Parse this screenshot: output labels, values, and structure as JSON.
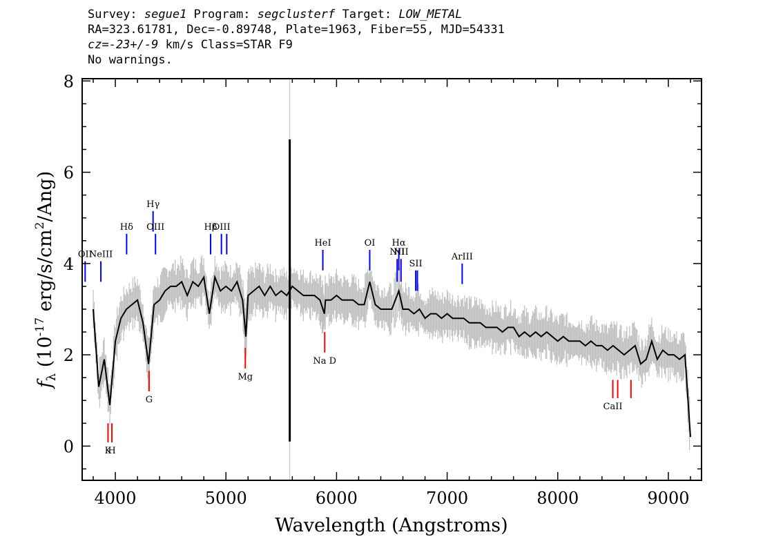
{
  "header": {
    "survey_label": "Survey: ",
    "survey": "segue1",
    "program_label": " Program: ",
    "program": "segclusterf",
    "target_label": " Target: ",
    "target": "LOW_METAL",
    "line2": "RA=323.61781, Dec=-0.89748, Plate=1963, Fiber=55, MJD=54331",
    "cz": "cz=-23+/-9",
    "line3_rest": " km/s Class=STAR F9",
    "line4": "No warnings."
  },
  "chart_data": {
    "type": "line",
    "xlabel": "Wavelength (Angstroms)",
    "ylabel": "f_λ (10^-17 erg/s/cm^2/Ang)",
    "xlim": [
      3700,
      9300
    ],
    "ylim": [
      -0.75,
      8.05
    ],
    "xticks": [
      4000,
      5000,
      6000,
      7000,
      8000,
      9000
    ],
    "yticks": [
      0,
      2,
      4,
      6,
      8
    ],
    "series": [
      {
        "name": "flux",
        "color": "#000000",
        "x": [
          3800,
          3850,
          3900,
          3950,
          4000,
          4050,
          4100,
          4150,
          4200,
          4250,
          4300,
          4350,
          4400,
          4450,
          4500,
          4550,
          4600,
          4650,
          4700,
          4750,
          4800,
          4850,
          4900,
          4950,
          5000,
          5050,
          5100,
          5150,
          5180,
          5200,
          5250,
          5300,
          5350,
          5400,
          5450,
          5500,
          5550,
          5600,
          5650,
          5700,
          5750,
          5800,
          5850,
          5890,
          5900,
          5950,
          6000,
          6050,
          6100,
          6150,
          6200,
          6250,
          6300,
          6350,
          6400,
          6450,
          6500,
          6563,
          6600,
          6650,
          6700,
          6750,
          6800,
          6850,
          6900,
          6950,
          7000,
          7050,
          7100,
          7150,
          7200,
          7250,
          7300,
          7350,
          7400,
          7450,
          7500,
          7550,
          7600,
          7650,
          7700,
          7750,
          7800,
          7850,
          7900,
          7950,
          8000,
          8050,
          8100,
          8150,
          8200,
          8250,
          8300,
          8350,
          8400,
          8450,
          8500,
          8550,
          8600,
          8650,
          8700,
          8750,
          8800,
          8850,
          8900,
          8950,
          9000,
          9050,
          9100,
          9150,
          9200
        ],
        "y": [
          3.0,
          1.3,
          1.9,
          0.9,
          2.3,
          2.8,
          3.0,
          3.1,
          3.2,
          2.7,
          1.8,
          3.1,
          3.2,
          3.4,
          3.5,
          3.5,
          3.6,
          3.3,
          3.6,
          3.5,
          3.7,
          2.9,
          3.7,
          3.4,
          3.5,
          3.4,
          3.6,
          3.2,
          2.4,
          3.3,
          3.4,
          3.5,
          3.3,
          3.5,
          3.3,
          3.4,
          3.3,
          3.5,
          3.4,
          3.3,
          3.3,
          3.3,
          3.2,
          2.9,
          3.2,
          3.2,
          3.3,
          3.2,
          3.2,
          3.2,
          3.1,
          3.1,
          3.6,
          3.1,
          3.0,
          3.0,
          3.0,
          3.4,
          3.0,
          3.0,
          2.9,
          3.0,
          2.8,
          2.9,
          2.9,
          2.8,
          2.9,
          2.8,
          2.8,
          2.8,
          2.7,
          2.7,
          2.7,
          2.6,
          2.6,
          2.6,
          2.5,
          2.6,
          2.6,
          2.4,
          2.5,
          2.4,
          2.5,
          2.4,
          2.5,
          2.4,
          2.3,
          2.4,
          2.3,
          2.3,
          2.3,
          2.2,
          2.3,
          2.2,
          2.2,
          2.1,
          2.2,
          2.1,
          2.0,
          2.1,
          2.2,
          1.8,
          1.9,
          2.3,
          1.9,
          2.1,
          2.0,
          2.0,
          1.9,
          2.0,
          0.2
        ]
      }
    ],
    "artifact_spike": {
      "x": 5577,
      "y_low": 0.1,
      "y_high": 6.72
    },
    "emission_lines": [
      {
        "label": "OII",
        "wavelength": 3727,
        "y_top": 4.05,
        "y_bottom": 3.6
      },
      {
        "label": "NeIII",
        "wavelength": 3869,
        "y_top": 4.05,
        "y_bottom": 3.6
      },
      {
        "label": "Hδ",
        "wavelength": 4102,
        "y_top": 4.65,
        "y_bottom": 4.2
      },
      {
        "label": "Hγ",
        "wavelength": 4341,
        "y_top": 5.15,
        "y_bottom": 4.7
      },
      {
        "label": "OIII",
        "wavelength": 4363,
        "y_top": 4.65,
        "y_bottom": 4.2
      },
      {
        "label": "Hβ",
        "wavelength": 4861,
        "y_top": 4.65,
        "y_bottom": 4.2
      },
      {
        "label": "OIII",
        "wavelength": 4959,
        "y_top": 4.65,
        "y_bottom": 4.2
      },
      {
        "label": "",
        "wavelength": 5007,
        "y_top": 4.65,
        "y_bottom": 4.2
      },
      {
        "label": "HeI",
        "wavelength": 5876,
        "y_top": 4.3,
        "y_bottom": 3.85
      },
      {
        "label": "OI",
        "wavelength": 6300,
        "y_top": 4.3,
        "y_bottom": 3.85
      },
      {
        "label": "NII",
        "wavelength": 6548,
        "y_top": 4.1,
        "y_bottom": 3.6
      },
      {
        "label": "Hα",
        "wavelength": 6563,
        "y_top": 4.3,
        "y_bottom": 3.85
      },
      {
        "label": "NII",
        "wavelength": 6583,
        "y_top": 4.1,
        "y_bottom": 3.6
      },
      {
        "label": "SII",
        "wavelength": 6716,
        "y_top": 3.85,
        "y_bottom": 3.4
      },
      {
        "label": "",
        "wavelength": 6731,
        "y_top": 3.85,
        "y_bottom": 3.4
      },
      {
        "label": "ArIII",
        "wavelength": 7136,
        "y_top": 4.0,
        "y_bottom": 3.55
      }
    ],
    "absorption_lines": [
      {
        "label": "K",
        "wavelength": 3934,
        "y_top": 0.5,
        "y_bottom": 0.08
      },
      {
        "label": "H",
        "wavelength": 3969,
        "y_top": 0.5,
        "y_bottom": 0.08
      },
      {
        "label": "G",
        "wavelength": 4305,
        "y_top": 1.65,
        "y_bottom": 1.2
      },
      {
        "label": "Mg",
        "wavelength": 5175,
        "y_top": 2.15,
        "y_bottom": 1.7
      },
      {
        "label": "Na D",
        "wavelength": 5893,
        "y_top": 2.5,
        "y_bottom": 2.05
      },
      {
        "label": "CaII",
        "wavelength": 8498,
        "y_top": 1.45,
        "y_bottom": 1.05
      },
      {
        "label": "",
        "wavelength": 8542,
        "y_top": 1.45,
        "y_bottom": 1.05
      },
      {
        "label": "",
        "wavelength": 8662,
        "y_top": 1.45,
        "y_bottom": 1.05
      }
    ],
    "colors": {
      "flux": "#000000",
      "error": "#c0c0c0",
      "emission": "#0000ff",
      "absorption": "#ff0000"
    }
  }
}
